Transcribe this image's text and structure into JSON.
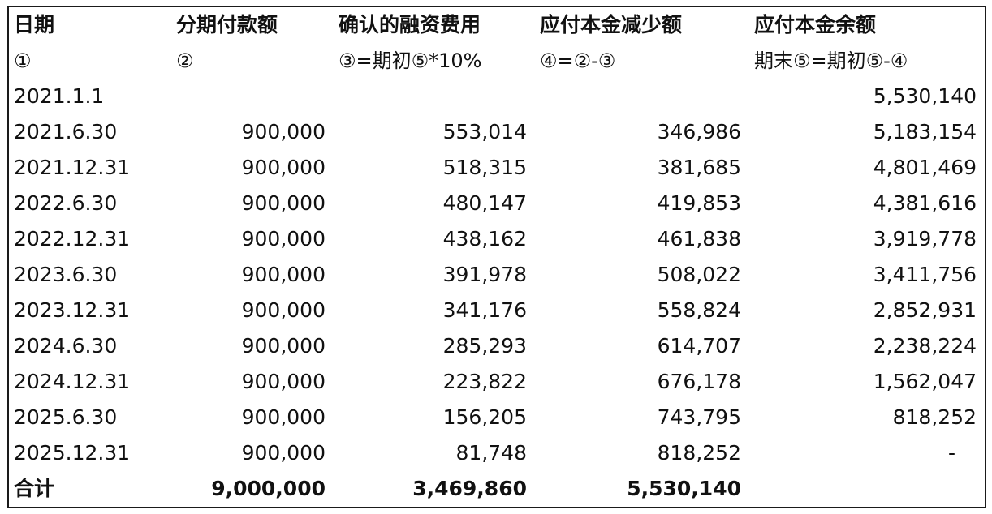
{
  "header": [
    "日期",
    "分期付款额",
    "确认的融资费用",
    "应付本金减少额",
    "应付本金余额"
  ],
  "subheader": [
    "①",
    "②",
    "③=期初⑤*10%",
    "④=②-③",
    "期末⑤=期初⑤-④"
  ],
  "rows": [
    [
      "2021.1.1",
      "",
      "",
      "",
      "5,530,140"
    ],
    [
      "2021.6.30",
      "900,000",
      "553,014",
      "346,986",
      "5,183,154"
    ],
    [
      "2021.12.31",
      "900,000",
      "518,315",
      "381,685",
      "4,801,469"
    ],
    [
      "2022.6.30",
      "900,000",
      "480,147",
      "419,853",
      "4,381,616"
    ],
    [
      "2022.12.31",
      "900,000",
      "438,162",
      "461,838",
      "3,919,778"
    ],
    [
      "2023.6.30",
      "900,000",
      "391,978",
      "508,022",
      "3,411,756"
    ],
    [
      "2023.12.31",
      "900,000",
      "341,176",
      "558,824",
      "2,852,931"
    ],
    [
      "2024.6.30",
      "900,000",
      "285,293",
      "614,707",
      "2,238,224"
    ],
    [
      "2024.12.31",
      "900,000",
      "223,822",
      "676,178",
      "1,562,047"
    ],
    [
      "2025.6.30",
      "900,000",
      "156,205",
      "743,795",
      "818,252"
    ],
    [
      "2025.12.31",
      "900,000",
      "81,748",
      "818,252",
      "-"
    ]
  ],
  "total": [
    "合计",
    "9,000,000",
    "3,469,860",
    "5,530,140",
    ""
  ]
}
